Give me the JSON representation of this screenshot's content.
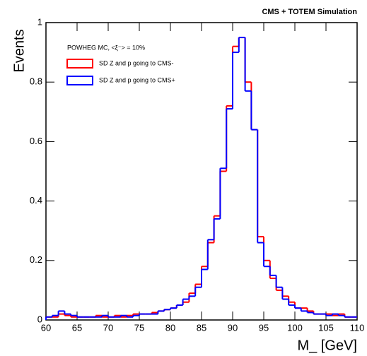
{
  "chart_data": {
    "type": "histogram",
    "title": "CMS + TOTEM Simulation",
    "legend_title": "POWHEG MC, <ξ⁻> = 10%",
    "x_label": "M_ [GeV]",
    "y_label": "Events",
    "bins": [
      60,
      61,
      62,
      63,
      64,
      65,
      66,
      67,
      68,
      69,
      70,
      71,
      72,
      73,
      74,
      75,
      76,
      77,
      78,
      79,
      80,
      81,
      82,
      83,
      84,
      85,
      86,
      87,
      88,
      89,
      90,
      91,
      92,
      93,
      94,
      95,
      96,
      97,
      98,
      99,
      100,
      101,
      102,
      103,
      104,
      105,
      106,
      107,
      108,
      109,
      110
    ],
    "series": [
      {
        "name": "SD Z and p going to CMS-",
        "color": "#ff0000",
        "values": [
          0.01,
          0.01,
          0.02,
          0.015,
          0.01,
          0.01,
          0.01,
          0.01,
          0.015,
          0.01,
          0.01,
          0.015,
          0.01,
          0.015,
          0.02,
          0.02,
          0.02,
          0.025,
          0.03,
          0.035,
          0.04,
          0.05,
          0.06,
          0.09,
          0.12,
          0.18,
          0.26,
          0.35,
          0.5,
          0.72,
          0.92,
          0.95,
          0.8,
          0.64,
          0.28,
          0.2,
          0.14,
          0.1,
          0.08,
          0.06,
          0.04,
          0.04,
          0.03,
          0.02,
          0.02,
          0.02,
          0.015,
          0.02,
          0.01,
          0.01
        ]
      },
      {
        "name": "SD Z and p going to CMS+",
        "color": "#0000ff",
        "values": [
          0.01,
          0.015,
          0.03,
          0.02,
          0.015,
          0.01,
          0.01,
          0.01,
          0.01,
          0.015,
          0.01,
          0.01,
          0.015,
          0.01,
          0.015,
          0.02,
          0.02,
          0.02,
          0.03,
          0.035,
          0.04,
          0.05,
          0.07,
          0.08,
          0.11,
          0.17,
          0.27,
          0.34,
          0.51,
          0.71,
          0.9,
          0.95,
          0.77,
          0.64,
          0.26,
          0.18,
          0.15,
          0.11,
          0.07,
          0.05,
          0.04,
          0.03,
          0.025,
          0.02,
          0.02,
          0.015,
          0.02,
          0.015,
          0.01,
          0.01
        ]
      }
    ],
    "xlim": [
      60,
      110
    ],
    "ylim": [
      0,
      1
    ],
    "xticks": [
      60,
      65,
      70,
      75,
      80,
      85,
      90,
      95,
      100,
      105,
      110
    ],
    "yticks": [
      0,
      0.2,
      0.4,
      0.6,
      0.8,
      1
    ]
  }
}
